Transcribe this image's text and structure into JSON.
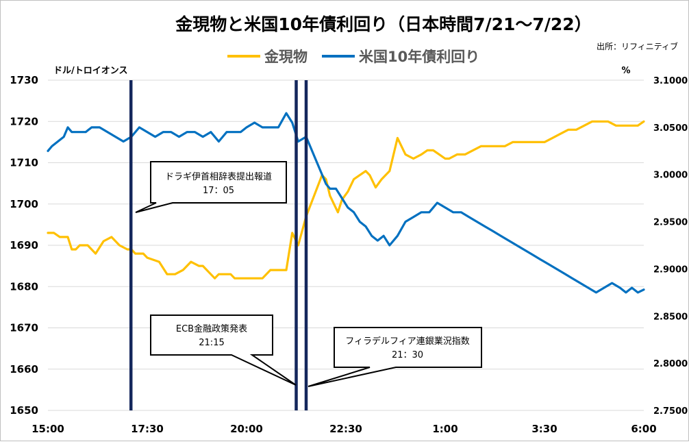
{
  "chart_data": {
    "type": "line",
    "title": "金現物と米国10年債利回り（日本時間7/21～7/22）",
    "source": "出所：リフィニティブ",
    "legend_position": "top-center",
    "left_axis": {
      "unit": "ドル/トロイオンス",
      "range": [
        1650,
        1730
      ],
      "ticks": [
        "1650",
        "1660",
        "1670",
        "1680",
        "1690",
        "1700",
        "1710",
        "1720",
        "1730"
      ]
    },
    "right_axis": {
      "unit": "%",
      "range": [
        2.75,
        3.1
      ],
      "ticks": [
        "2.7500",
        "2.8000",
        "2.8500",
        "2.9000",
        "2.9500",
        "3.0000",
        "3.0500",
        "3.1000"
      ]
    },
    "x_axis": {
      "range_hours": [
        15,
        30
      ],
      "ticks": [
        "15:00",
        "17:30",
        "20:00",
        "22:30",
        "1:00",
        "3:30",
        "6:00"
      ]
    },
    "grid": true,
    "series": [
      {
        "name": "金現物",
        "color": "#FFC000",
        "axis": "left",
        "x": [
          15.0,
          15.15,
          15.3,
          15.5,
          15.6,
          15.7,
          15.8,
          16.0,
          16.2,
          16.4,
          16.6,
          16.8,
          17.0,
          17.1,
          17.2,
          17.4,
          17.5,
          17.8,
          18.0,
          18.2,
          18.4,
          18.6,
          18.8,
          18.9,
          19.1,
          19.2,
          19.3,
          19.4,
          19.6,
          19.7,
          19.85,
          20.0,
          20.2,
          20.4,
          20.6,
          20.8,
          21.0,
          21.15,
          21.3,
          21.5,
          21.7,
          21.9,
          22.0,
          22.1,
          22.2,
          22.3,
          22.4,
          22.55,
          22.7,
          22.85,
          23.0,
          23.1,
          23.25,
          23.4,
          23.6,
          23.8,
          24.0,
          24.2,
          24.4,
          24.55,
          24.7,
          24.85,
          25.0,
          25.1,
          25.3,
          25.5,
          25.7,
          25.9,
          26.1,
          26.3,
          26.5,
          26.7,
          26.9,
          27.1,
          27.3,
          27.5,
          27.7,
          27.9,
          28.1,
          28.3,
          28.5,
          28.7,
          28.9,
          29.1,
          29.3,
          29.5,
          29.7,
          29.85,
          30.0
        ],
        "y": [
          1693,
          1693,
          1692,
          1692,
          1689,
          1689,
          1690,
          1690,
          1688,
          1691,
          1692,
          1690,
          1689,
          1689,
          1688,
          1688,
          1687,
          1686,
          1683,
          1683,
          1684,
          1686,
          1685,
          1685,
          1683,
          1682,
          1683,
          1683,
          1683,
          1682,
          1682,
          1682,
          1682,
          1682,
          1684,
          1684,
          1684,
          1693,
          1690,
          1697,
          1702,
          1707,
          1706,
          1702,
          1700,
          1698,
          1701,
          1703,
          1706,
          1707,
          1708,
          1707,
          1704,
          1706,
          1708,
          1716,
          1712,
          1711,
          1712,
          1713,
          1713,
          1712,
          1711,
          1711,
          1712,
          1712,
          1713,
          1714,
          1714,
          1714,
          1714,
          1715,
          1715,
          1715,
          1715,
          1715,
          1716,
          1717,
          1718,
          1718,
          1719,
          1720,
          1720,
          1720,
          1719,
          1719,
          1719,
          1719,
          1720
        ]
      },
      {
        "name": "米国10年債利回り",
        "color": "#0070C0",
        "axis": "right",
        "x": [
          15.0,
          15.1,
          15.25,
          15.4,
          15.5,
          15.6,
          15.75,
          15.95,
          16.1,
          16.3,
          16.5,
          16.7,
          16.9,
          17.1,
          17.3,
          17.5,
          17.7,
          17.9,
          18.1,
          18.3,
          18.5,
          18.7,
          18.9,
          19.1,
          19.3,
          19.4,
          19.5,
          19.65,
          19.85,
          20.0,
          20.2,
          20.4,
          20.6,
          20.8,
          21.0,
          21.15,
          21.3,
          21.5,
          21.6,
          21.75,
          21.9,
          22.0,
          22.1,
          22.25,
          22.4,
          22.55,
          22.7,
          22.85,
          23.0,
          23.15,
          23.3,
          23.45,
          23.6,
          23.8,
          24.0,
          24.2,
          24.4,
          24.6,
          24.8,
          25.0,
          25.2,
          25.4,
          25.6,
          25.8,
          26.0,
          26.2,
          26.4,
          26.6,
          26.8,
          27.0,
          27.2,
          27.4,
          27.6,
          27.8,
          28.0,
          28.2,
          28.4,
          28.6,
          28.8,
          29.0,
          29.2,
          29.4,
          29.55,
          29.7,
          29.85,
          30.0
        ],
        "y": [
          3.025,
          3.03,
          3.035,
          3.04,
          3.05,
          3.045,
          3.045,
          3.045,
          3.05,
          3.05,
          3.045,
          3.04,
          3.035,
          3.04,
          3.05,
          3.045,
          3.04,
          3.045,
          3.045,
          3.04,
          3.045,
          3.045,
          3.04,
          3.045,
          3.035,
          3.04,
          3.045,
          3.045,
          3.045,
          3.05,
          3.055,
          3.05,
          3.05,
          3.05,
          3.065,
          3.055,
          3.035,
          3.04,
          3.03,
          3.015,
          3.0,
          2.99,
          2.985,
          2.985,
          2.975,
          2.965,
          2.96,
          2.95,
          2.945,
          2.935,
          2.93,
          2.935,
          2.925,
          2.935,
          2.95,
          2.955,
          2.96,
          2.96,
          2.97,
          2.965,
          2.96,
          2.96,
          2.955,
          2.95,
          2.945,
          2.94,
          2.935,
          2.93,
          2.925,
          2.92,
          2.915,
          2.91,
          2.905,
          2.9,
          2.895,
          2.89,
          2.885,
          2.88,
          2.875,
          2.88,
          2.885,
          2.88,
          2.875,
          2.88,
          2.875,
          2.878
        ]
      }
    ],
    "event_lines": [
      {
        "x": 17.09,
        "label": "ドラギ伊首相辞表提出報道",
        "time": "17：05"
      },
      {
        "x": 21.25,
        "label": "ECB金融政策発表",
        "time": "21:15"
      },
      {
        "x": 21.5,
        "label": "フィラデルフィア連銀業況指数",
        "time": "21：30"
      }
    ]
  },
  "colors": {
    "gold": "#FFC000",
    "yield": "#0070C0",
    "event_line": "#14275C",
    "grid": "#D9D9D9"
  },
  "icons": {
    "legend_gold": "legend-line-swatch",
    "legend_yield": "legend-line-swatch"
  }
}
